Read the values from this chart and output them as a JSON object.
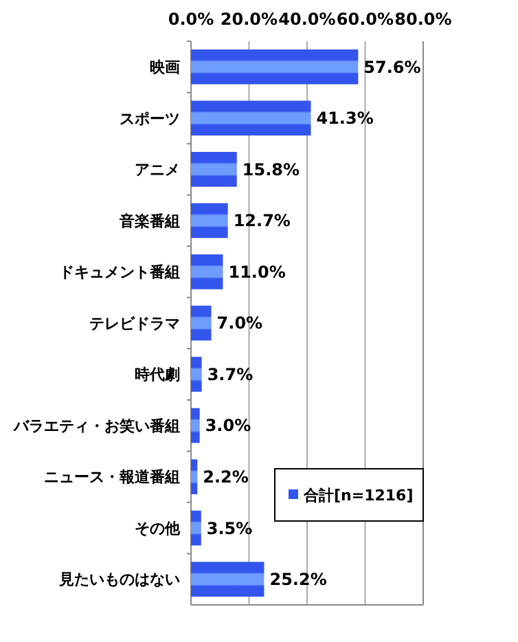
{
  "chart_data": {
    "type": "bar",
    "orientation": "horizontal",
    "categories": [
      "映画",
      "スポーツ",
      "アニメ",
      "音楽番組",
      "ドキュメント番組",
      "テレビドラマ",
      "時代劇",
      "バラエティ・お笑い番組",
      "ニュース・報道番組",
      "その他",
      "見たいものはない"
    ],
    "series": [
      {
        "name": "合計[n=1216]",
        "color": "#3355ee",
        "values": [
          57.6,
          41.3,
          15.8,
          12.7,
          11.0,
          7.0,
          3.7,
          3.0,
          2.2,
          3.5,
          25.2
        ],
        "value_labels": [
          "57.6%",
          "41.3%",
          "15.8%",
          "12.7%",
          "11.0%",
          "7.0%",
          "3.7%",
          "3.0%",
          "2.2%",
          "3.5%",
          "25.2%"
        ]
      }
    ],
    "xlim": [
      0,
      80
    ],
    "xticks": [
      {
        "value": 0,
        "label": "0.0%"
      },
      {
        "value": 20,
        "label": "20.0%"
      },
      {
        "value": 40,
        "label": "40.0%"
      },
      {
        "value": 60,
        "label": "60.0%"
      },
      {
        "value": 80,
        "label": "80.0%"
      }
    ],
    "grid": "x",
    "legend": "bottom right"
  }
}
